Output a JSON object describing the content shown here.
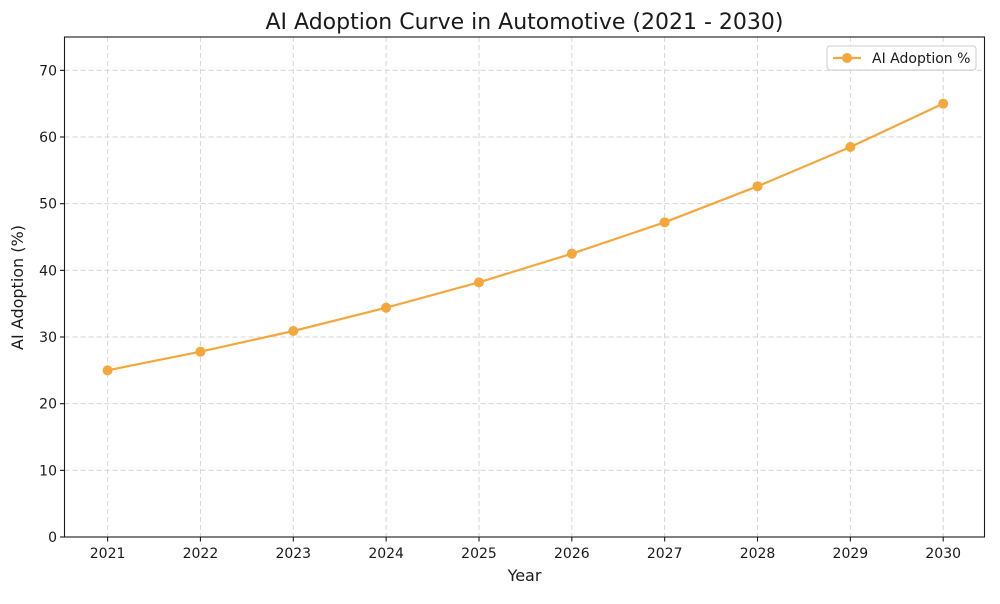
{
  "chart_data": {
    "type": "line",
    "title": "AI Adoption Curve in Automotive (2021 - 2030)",
    "xlabel": "Year",
    "ylabel": "AI Adoption (%)",
    "categories": [
      "2021",
      "2022",
      "2023",
      "2024",
      "2025",
      "2026",
      "2027",
      "2028",
      "2029",
      "2030"
    ],
    "series": [
      {
        "name": "AI Adoption %",
        "values": [
          25.0,
          27.8,
          30.9,
          34.4,
          38.2,
          42.5,
          47.2,
          52.6,
          58.5,
          65.0
        ],
        "color": "#f3a73d",
        "marker": "circle",
        "line_width": 2.2,
        "marker_radius": 5
      }
    ],
    "ylim": [
      0,
      75
    ],
    "yticks": [
      0,
      10,
      20,
      30,
      40,
      50,
      60,
      70
    ],
    "grid": true,
    "grid_style": "dashed",
    "grid_color": "#d6d6d6",
    "spine_color": "#1a1a1a",
    "text_color": "#1a1a1a",
    "background_color": "#ffffff",
    "legend": {
      "position": "upper-right",
      "labels": [
        "AI Adoption %"
      ],
      "border_color": "#cccccc",
      "background": "#ffffff"
    }
  }
}
